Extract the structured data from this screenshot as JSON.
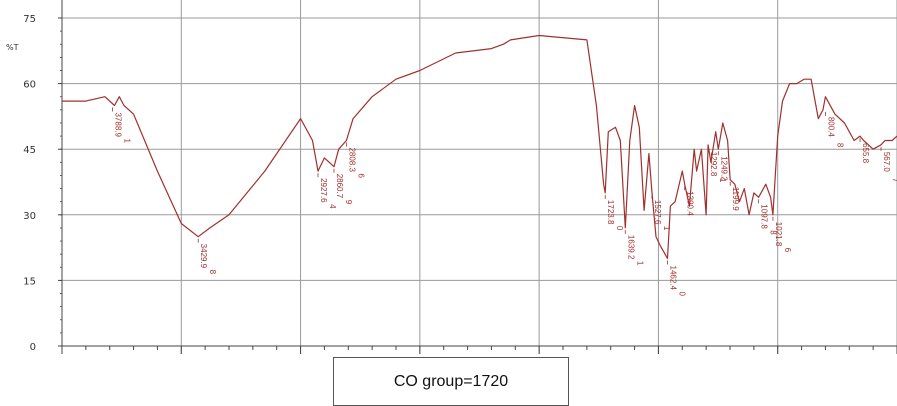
{
  "chart_data": {
    "type": "line",
    "ylabel": "%T",
    "ylim": [
      0,
      75
    ],
    "yticks": [
      0,
      15,
      30,
      45,
      60,
      75
    ],
    "xlim": [
      4000,
      500
    ],
    "x_grid": [
      3500,
      3000,
      2500,
      2000,
      1500,
      1000,
      500
    ],
    "grid": true,
    "colors": {
      "line": "#a0302e",
      "grid": "#9a9a9a",
      "axis": "#444444"
    },
    "series": [
      {
        "x": [
          4000,
          3900,
          3820,
          3780,
          3760,
          3740,
          3700,
          3600,
          3500,
          3429,
          3380,
          3300,
          3150,
          3000,
          2950,
          2927,
          2900,
          2860,
          2840,
          2808,
          2780,
          2700,
          2600,
          2500,
          2350,
          2200,
          2150,
          2120,
          2000,
          1800,
          1760,
          1740,
          1730,
          1723,
          1710,
          1680,
          1660,
          1639,
          1620,
          1600,
          1580,
          1560,
          1540,
          1527,
          1510,
          1493,
          1462,
          1450,
          1430,
          1400,
          1390,
          1370,
          1350,
          1340,
          1320,
          1300,
          1292,
          1280,
          1260,
          1249,
          1230,
          1210,
          1199,
          1180,
          1160,
          1140,
          1120,
          1100,
          1080,
          1050,
          1030,
          1020,
          1000,
          980,
          950,
          920,
          890,
          860,
          830,
          810,
          800,
          760,
          720,
          700,
          680,
          655,
          640,
          620,
          600,
          567,
          550,
          520,
          500
        ],
        "y": [
          56,
          56,
          57,
          55,
          57,
          55,
          53,
          40,
          28,
          25,
          27,
          30,
          40,
          52,
          47,
          40,
          43,
          41,
          45,
          47,
          52,
          57,
          61,
          63,
          67,
          68,
          69,
          70,
          71,
          70,
          55,
          43,
          37,
          35,
          49,
          50,
          47,
          27,
          47,
          55,
          50,
          31,
          44,
          35,
          25,
          23,
          20,
          32,
          33,
          40,
          37,
          32,
          45,
          40,
          45,
          30,
          46,
          42,
          49,
          45,
          51,
          47,
          38,
          37,
          33,
          36,
          30,
          35,
          34,
          37,
          34,
          30,
          48,
          56,
          60,
          60,
          61,
          61,
          52,
          54,
          57,
          53,
          51,
          49,
          47,
          48,
          47,
          46,
          45,
          46,
          47,
          47,
          48
        ]
      }
    ],
    "peak_labels": [
      {
        "x": 3788,
        "y": 55,
        "text": "3788.9",
        "suffix": "1"
      },
      {
        "x": 3429,
        "y": 25,
        "text": "3429.9",
        "suffix": "8"
      },
      {
        "x": 2927,
        "y": 40,
        "text": "2927.6",
        "suffix": "4"
      },
      {
        "x": 2860,
        "y": 41,
        "text": "2860.7",
        "suffix": "9"
      },
      {
        "x": 2808,
        "y": 47,
        "text": "2808.3",
        "suffix": "6"
      },
      {
        "x": 1723,
        "y": 35,
        "text": "1723.8",
        "suffix": "0"
      },
      {
        "x": 1639,
        "y": 27,
        "text": "1639.2",
        "suffix": "1"
      },
      {
        "x": 1527,
        "y": 35,
        "text": "1527.6",
        "suffix": "1"
      },
      {
        "x": 1462,
        "y": 20,
        "text": "1462.4",
        "suffix": "0"
      },
      {
        "x": 1390,
        "y": 37,
        "text": "1390.4",
        "suffix": ""
      },
      {
        "x": 1292,
        "y": 46,
        "text": "1292.8",
        "suffix": "1"
      },
      {
        "x": 1249,
        "y": 45,
        "text": "1249.2",
        "suffix": ""
      },
      {
        "x": 1199,
        "y": 38,
        "text": "1199.9",
        "suffix": ""
      },
      {
        "x": 1080,
        "y": 34,
        "text": "1097.8",
        "suffix": "8"
      },
      {
        "x": 1020,
        "y": 30,
        "text": "1021.8",
        "suffix": "6"
      },
      {
        "x": 800,
        "y": 54,
        "text": "800.4",
        "suffix": "8"
      },
      {
        "x": 655,
        "y": 48,
        "text": "655.8",
        "suffix": ""
      },
      {
        "x": 567,
        "y": 46,
        "text": "567.0",
        "suffix": "7"
      }
    ]
  },
  "annotation": {
    "text": "CO group=1720"
  }
}
